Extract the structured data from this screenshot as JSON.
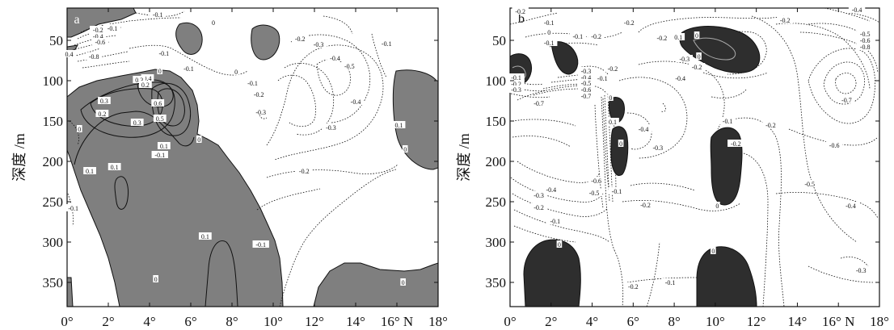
{
  "chart_data": [
    {
      "type": "contour",
      "panel_label": "a",
      "ylabel": "深度 /m",
      "x_ticks": [
        "0°",
        "2°",
        "4°",
        "6°",
        "8°",
        "10°",
        "12°",
        "14°",
        "16° N",
        "18°"
      ],
      "x_values": [
        0,
        2,
        4,
        6,
        8,
        10,
        12,
        14,
        16,
        18
      ],
      "y_ticks": [
        "50",
        "100",
        "150",
        "200",
        "250",
        "300",
        "350"
      ],
      "y_values": [
        50,
        100,
        150,
        200,
        250,
        300,
        350
      ],
      "xlim": [
        0,
        18
      ],
      "ylim": [
        380,
        10
      ],
      "shading": "values above 0 shaded gray",
      "contour_labels": [
        {
          "x": 1.5,
          "y": 37,
          "text": "-0.2"
        },
        {
          "x": 2.2,
          "y": 35,
          "text": "-0.1"
        },
        {
          "x": 1.5,
          "y": 45,
          "text": "-0.4"
        },
        {
          "x": 1.6,
          "y": 52,
          "text": "-0.6"
        },
        {
          "x": 0.1,
          "y": 67,
          "text": "0.4"
        },
        {
          "x": 1.3,
          "y": 70,
          "text": "-0.8"
        },
        {
          "x": 4.4,
          "y": 18,
          "text": "-0.1"
        },
        {
          "x": 7.1,
          "y": 28,
          "text": "0"
        },
        {
          "x": 4.7,
          "y": 66,
          "text": "-0.1"
        },
        {
          "x": 5.9,
          "y": 85,
          "text": "-0.1"
        },
        {
          "x": 3.9,
          "y": 97,
          "text": "0.4"
        },
        {
          "x": 3.5,
          "y": 99,
          "text": "0.3"
        },
        {
          "x": 3.8,
          "y": 105,
          "text": "0.2"
        },
        {
          "x": 4.5,
          "y": 88,
          "text": "0"
        },
        {
          "x": 1.8,
          "y": 125,
          "text": "0.3"
        },
        {
          "x": 1.7,
          "y": 141,
          "text": "0.2"
        },
        {
          "x": 4.4,
          "y": 128,
          "text": "0.6"
        },
        {
          "x": 4.5,
          "y": 147,
          "text": "0.5"
        },
        {
          "x": 3.4,
          "y": 152,
          "text": "0.3"
        },
        {
          "x": 0.6,
          "y": 160,
          "text": "0"
        },
        {
          "x": 4.7,
          "y": 181,
          "text": "0.1"
        },
        {
          "x": 4.5,
          "y": 192,
          "text": "-0.1"
        },
        {
          "x": 6.4,
          "y": 173,
          "text": "0"
        },
        {
          "x": 1.1,
          "y": 212,
          "text": "0.1"
        },
        {
          "x": 2.3,
          "y": 207,
          "text": "0.1"
        },
        {
          "x": 0.3,
          "y": 258,
          "text": "-0.1"
        },
        {
          "x": 4.3,
          "y": 346,
          "text": "0"
        },
        {
          "x": 6.7,
          "y": 293,
          "text": "0.1"
        },
        {
          "x": 8.2,
          "y": 89,
          "text": "0"
        },
        {
          "x": 9.0,
          "y": 103,
          "text": "-0.1"
        },
        {
          "x": 9.3,
          "y": 117,
          "text": "-0.2"
        },
        {
          "x": 9.4,
          "y": 139,
          "text": "-0.3"
        },
        {
          "x": 11.3,
          "y": 48,
          "text": "-0.2"
        },
        {
          "x": 12.2,
          "y": 55,
          "text": "-0.3"
        },
        {
          "x": 13.0,
          "y": 72,
          "text": "-0.4"
        },
        {
          "x": 13.7,
          "y": 82,
          "text": "-0.5"
        },
        {
          "x": 14.0,
          "y": 126,
          "text": "-0.4"
        },
        {
          "x": 12.8,
          "y": 158,
          "text": "-0.3"
        },
        {
          "x": 11.5,
          "y": 212,
          "text": "-0.2"
        },
        {
          "x": 9.4,
          "y": 303,
          "text": "-0.1"
        },
        {
          "x": 15.5,
          "y": 54,
          "text": "-0.1"
        },
        {
          "x": 16.1,
          "y": 155,
          "text": "0.1"
        },
        {
          "x": 16.4,
          "y": 185,
          "text": "0"
        },
        {
          "x": 16.3,
          "y": 350,
          "text": "0"
        }
      ]
    },
    {
      "type": "contour",
      "panel_label": "b",
      "ylabel": "深度 /m",
      "x_ticks": [
        "0°",
        "2°",
        "4°",
        "6°",
        "8°",
        "10°",
        "12°",
        "14°",
        "16° N",
        "18°"
      ],
      "x_values": [
        0,
        2,
        4,
        6,
        8,
        10,
        12,
        14,
        16,
        18
      ],
      "y_ticks": [
        "50",
        "100",
        "150",
        "200",
        "250",
        "300",
        "350"
      ],
      "y_values": [
        50,
        100,
        150,
        200,
        250,
        300,
        350
      ],
      "xlim": [
        0,
        18
      ],
      "ylim": [
        380,
        10
      ],
      "shading": "values above 0 shaded dark",
      "contour_labels": [
        {
          "x": 0.5,
          "y": 14,
          "text": "-0.2"
        },
        {
          "x": 1.9,
          "y": 28,
          "text": "-0.1"
        },
        {
          "x": 1.9,
          "y": 40,
          "text": "0"
        },
        {
          "x": 1.9,
          "y": 53,
          "text": "-0.1"
        },
        {
          "x": 3.3,
          "y": 45,
          "text": "-0.1"
        },
        {
          "x": 4.2,
          "y": 45,
          "text": "-0.2"
        },
        {
          "x": 5.8,
          "y": 28,
          "text": "-0.2"
        },
        {
          "x": 7.4,
          "y": 47,
          "text": "-0.2"
        },
        {
          "x": 8.5,
          "y": 73,
          "text": "-0.3"
        },
        {
          "x": 9.1,
          "y": 83,
          "text": "-0.2"
        },
        {
          "x": 8.3,
          "y": 97,
          "text": "-0.4"
        },
        {
          "x": 8.2,
          "y": 46,
          "text": "0.1"
        },
        {
          "x": 9.1,
          "y": 44,
          "text": "0"
        },
        {
          "x": 9.2,
          "y": 70,
          "text": "0"
        },
        {
          "x": 5.0,
          "y": 85,
          "text": "-0.2"
        },
        {
          "x": 4.5,
          "y": 97,
          "text": "-0.1"
        },
        {
          "x": 3.7,
          "y": 88,
          "text": "-0.3"
        },
        {
          "x": 3.7,
          "y": 96,
          "text": "-0.4"
        },
        {
          "x": 3.7,
          "y": 103,
          "text": "-0.5"
        },
        {
          "x": 3.7,
          "y": 111,
          "text": "-0.6"
        },
        {
          "x": 3.7,
          "y": 119,
          "text": "-0.7"
        },
        {
          "x": 1.4,
          "y": 128,
          "text": "-0.7"
        },
        {
          "x": 0.3,
          "y": 96,
          "text": "-0.1"
        },
        {
          "x": 0.3,
          "y": 104,
          "text": "-0.2"
        },
        {
          "x": 0.3,
          "y": 111,
          "text": "-0.3"
        },
        {
          "x": 4.9,
          "y": 121,
          "text": "0"
        },
        {
          "x": 5.0,
          "y": 151,
          "text": "0.1"
        },
        {
          "x": 5.4,
          "y": 178,
          "text": "0"
        },
        {
          "x": 5.2,
          "y": 237,
          "text": "-0.1"
        },
        {
          "x": 4.2,
          "y": 224,
          "text": "-0.6"
        },
        {
          "x": 4.1,
          "y": 239,
          "text": "-0.5"
        },
        {
          "x": 2.0,
          "y": 235,
          "text": "-0.4"
        },
        {
          "x": 1.4,
          "y": 242,
          "text": "-0.3"
        },
        {
          "x": 1.4,
          "y": 257,
          "text": "-0.2"
        },
        {
          "x": 2.2,
          "y": 274,
          "text": "-0.1"
        },
        {
          "x": 2.4,
          "y": 303,
          "text": "0"
        },
        {
          "x": 6.5,
          "y": 160,
          "text": "-0.4"
        },
        {
          "x": 7.2,
          "y": 183,
          "text": "-0.3"
        },
        {
          "x": 6.6,
          "y": 254,
          "text": "-0.2"
        },
        {
          "x": 6.0,
          "y": 355,
          "text": "-0.2"
        },
        {
          "x": 7.8,
          "y": 350,
          "text": "-0.1"
        },
        {
          "x": 10.6,
          "y": 150,
          "text": "-0.1"
        },
        {
          "x": 10.1,
          "y": 255,
          "text": "0"
        },
        {
          "x": 9.9,
          "y": 311,
          "text": "0"
        },
        {
          "x": 11.0,
          "y": 178,
          "text": "-0.2"
        },
        {
          "x": 12.7,
          "y": 155,
          "text": "-0.2"
        },
        {
          "x": 13.4,
          "y": 25,
          "text": "-0.2"
        },
        {
          "x": 16.9,
          "y": 12,
          "text": "-0.4"
        },
        {
          "x": 17.3,
          "y": 42,
          "text": "-0.5"
        },
        {
          "x": 17.3,
          "y": 50,
          "text": "-0.6"
        },
        {
          "x": 17.3,
          "y": 58,
          "text": "-0.8"
        },
        {
          "x": 16.4,
          "y": 124,
          "text": "-0.7"
        },
        {
          "x": 15.8,
          "y": 180,
          "text": "-0.6"
        },
        {
          "x": 14.6,
          "y": 228,
          "text": "-0.5"
        },
        {
          "x": 16.6,
          "y": 255,
          "text": "-0.4"
        },
        {
          "x": 17.1,
          "y": 335,
          "text": "-0.3"
        }
      ]
    }
  ]
}
